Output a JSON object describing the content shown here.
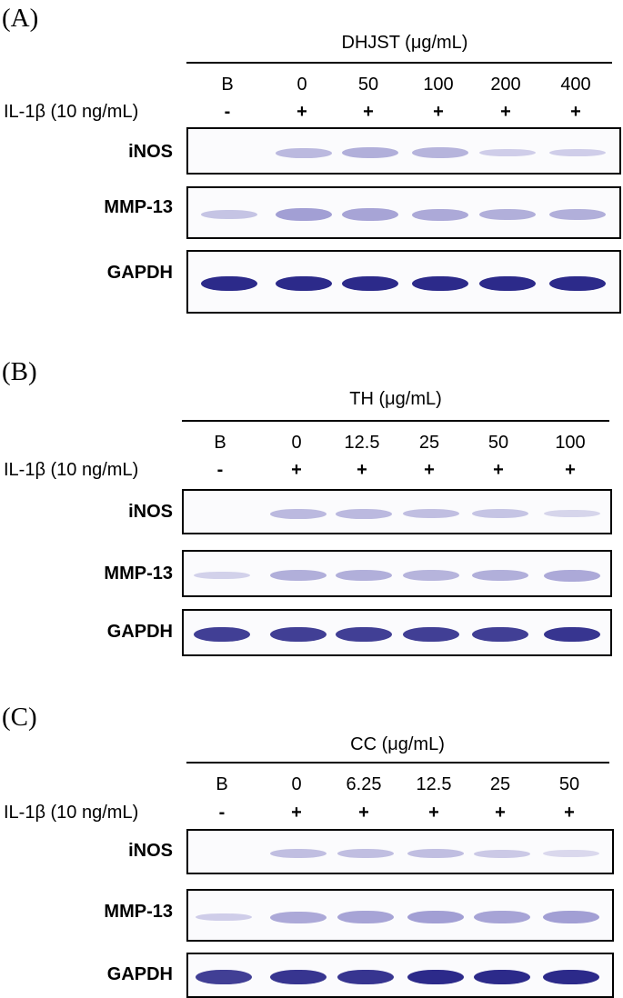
{
  "il_label": "IL-1β (10 ng/mL)",
  "panels": [
    {
      "label": "(A)",
      "treatment": "DHJST (μg/mL)",
      "doses": [
        "B",
        "0",
        "50",
        "100",
        "200",
        "400"
      ],
      "il_signs": [
        "-",
        "+",
        "+",
        "+",
        "+",
        "+"
      ],
      "blots": [
        {
          "name": "iNOS",
          "intensity": [
            0.0,
            0.35,
            0.45,
            0.4,
            0.15,
            0.15
          ]
        },
        {
          "name": "MMP-13",
          "intensity": [
            0.25,
            0.6,
            0.55,
            0.5,
            0.45,
            0.45
          ]
        },
        {
          "name": "GAPDH",
          "intensity": [
            1.0,
            1.0,
            1.0,
            1.0,
            1.0,
            1.0
          ]
        }
      ]
    },
    {
      "label": "(B)",
      "treatment": "TH (μg/mL)",
      "doses": [
        "B",
        "0",
        "12.5",
        "25",
        "50",
        "100"
      ],
      "il_signs": [
        "-",
        "+",
        "+",
        "+",
        "+",
        "+"
      ],
      "blots": [
        {
          "name": "iNOS",
          "intensity": [
            0.0,
            0.35,
            0.35,
            0.3,
            0.25,
            0.08
          ]
        },
        {
          "name": "MMP-13",
          "intensity": [
            0.12,
            0.45,
            0.45,
            0.4,
            0.45,
            0.5
          ]
        },
        {
          "name": "GAPDH",
          "intensity": [
            0.9,
            0.9,
            0.9,
            0.9,
            0.9,
            0.95
          ]
        }
      ]
    },
    {
      "label": "(C)",
      "treatment": "CC (μg/mL)",
      "doses": [
        "B",
        "0",
        "6.25",
        "12.5",
        "25",
        "50"
      ],
      "il_signs": [
        "-",
        "+",
        "+",
        "+",
        "+",
        "+"
      ],
      "blots": [
        {
          "name": "iNOS",
          "intensity": [
            0.0,
            0.3,
            0.3,
            0.3,
            0.2,
            0.05
          ]
        },
        {
          "name": "MMP-13",
          "intensity": [
            0.15,
            0.5,
            0.55,
            0.6,
            0.55,
            0.6
          ]
        },
        {
          "name": "GAPDH",
          "intensity": [
            0.9,
            0.95,
            0.95,
            1.0,
            1.0,
            1.0
          ]
        }
      ]
    }
  ],
  "colors": {
    "band": "#2c2a8a",
    "faint_band": "#8a86c8"
  }
}
